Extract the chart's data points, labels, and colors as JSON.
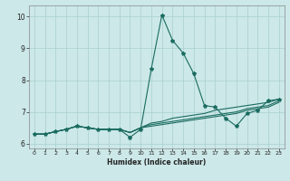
{
  "xlabel": "Humidex (Indice chaleur)",
  "background_color": "#cce8e8",
  "line_color": "#1a6b60",
  "grid_color": "#aacfcf",
  "xlim": [
    -0.5,
    23.5
  ],
  "ylim": [
    5.85,
    10.35
  ],
  "yticks": [
    6,
    7,
    8,
    9,
    10
  ],
  "xticks": [
    0,
    1,
    2,
    3,
    4,
    5,
    6,
    7,
    8,
    9,
    10,
    11,
    12,
    13,
    14,
    15,
    16,
    17,
    18,
    19,
    20,
    21,
    22,
    23
  ],
  "series": [
    [
      6.3,
      6.3,
      6.38,
      6.45,
      6.55,
      6.5,
      6.45,
      6.45,
      6.45,
      6.2,
      6.45,
      8.35,
      10.05,
      9.25,
      8.85,
      8.2,
      7.2,
      7.15,
      6.8,
      6.55,
      6.95,
      7.05,
      7.35,
      7.4
    ],
    [
      6.3,
      6.3,
      6.38,
      6.45,
      6.55,
      6.5,
      6.45,
      6.45,
      6.45,
      6.35,
      6.5,
      6.65,
      6.7,
      6.8,
      6.85,
      6.9,
      6.95,
      7.05,
      7.1,
      7.15,
      7.2,
      7.25,
      7.3,
      7.4
    ],
    [
      6.3,
      6.3,
      6.38,
      6.45,
      6.55,
      6.5,
      6.45,
      6.45,
      6.45,
      6.35,
      6.5,
      6.6,
      6.65,
      6.7,
      6.75,
      6.8,
      6.85,
      6.9,
      6.95,
      7.0,
      7.1,
      7.15,
      7.2,
      7.35
    ],
    [
      6.3,
      6.3,
      6.38,
      6.45,
      6.55,
      6.5,
      6.45,
      6.45,
      6.45,
      6.35,
      6.5,
      6.55,
      6.6,
      6.65,
      6.7,
      6.75,
      6.8,
      6.85,
      6.9,
      6.95,
      7.05,
      7.1,
      7.15,
      7.3
    ]
  ]
}
